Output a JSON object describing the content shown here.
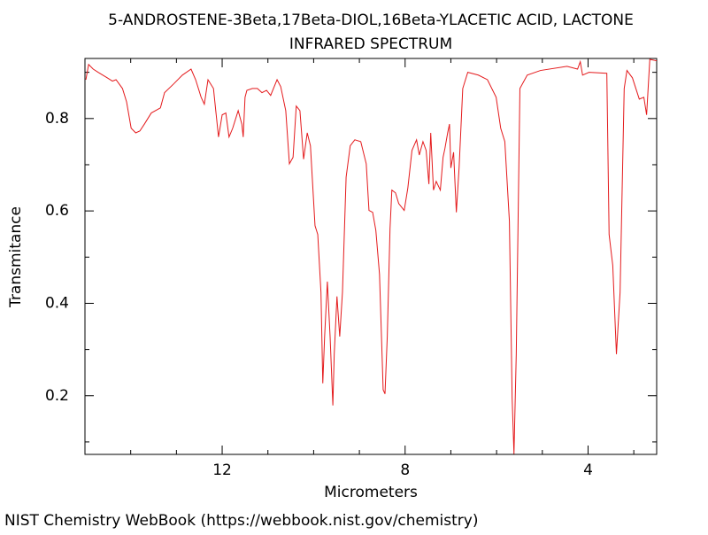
{
  "chart_data": {
    "type": "line",
    "title": "5-ANDROSTENE-3Beta,17Beta-DIOL,16Beta-YLACETIC ACID, LACTONE",
    "subtitle": "INFRARED SPECTRUM",
    "x_label": "Micrometers",
    "y_label": "Transmitance",
    "footer": "NIST Chemistry WebBook (https://webbook.nist.gov/chemistry)",
    "color": "#e41a1c",
    "xlim": [
      15,
      2.5
    ],
    "ylim": [
      0.073,
      0.93
    ],
    "xticks": [
      12,
      8,
      4
    ],
    "xminorticks": [
      14,
      13,
      11,
      10,
      9,
      7,
      6,
      5,
      3
    ],
    "yticks": [
      0.2,
      0.4,
      0.6,
      0.8
    ],
    "yminorticks": [
      0.1,
      0.3,
      0.5,
      0.7,
      0.9
    ],
    "x": [
      14.98,
      14.92,
      14.82,
      14.71,
      14.51,
      14.4,
      14.32,
      14.18,
      14.09,
      13.99,
      13.89,
      13.8,
      13.7,
      13.55,
      13.35,
      13.26,
      13.06,
      12.87,
      12.68,
      12.58,
      12.46,
      12.39,
      12.31,
      12.19,
      12.14,
      12.08,
      12.0,
      11.92,
      11.85,
      11.77,
      11.65,
      11.57,
      11.54,
      11.5,
      11.46,
      11.34,
      11.23,
      11.13,
      11.03,
      10.94,
      10.8,
      10.72,
      10.61,
      10.53,
      10.45,
      10.38,
      10.3,
      10.22,
      10.14,
      10.07,
      9.97,
      9.91,
      9.84,
      9.8,
      9.76,
      9.7,
      9.64,
      9.58,
      9.55,
      9.49,
      9.43,
      9.37,
      9.29,
      9.2,
      9.1,
      8.97,
      8.85,
      8.79,
      8.71,
      8.64,
      8.56,
      8.48,
      8.44,
      8.39,
      8.33,
      8.29,
      8.21,
      8.14,
      8.02,
      7.94,
      7.85,
      7.75,
      7.69,
      7.61,
      7.54,
      7.48,
      7.44,
      7.38,
      7.32,
      7.23,
      7.17,
      7.13,
      7.07,
      7.03,
      7.0,
      6.94,
      6.88,
      6.82,
      6.74,
      6.63,
      6.4,
      6.2,
      6.01,
      5.91,
      5.82,
      5.72,
      5.66,
      5.62,
      5.57,
      5.49,
      5.33,
      5.04,
      4.46,
      4.23,
      4.17,
      4.12,
      3.98,
      3.59,
      3.54,
      3.46,
      3.38,
      3.3,
      3.21,
      3.15,
      3.03,
      2.88,
      2.78,
      2.72,
      2.65,
      2.5
    ],
    "values": [
      0.884,
      0.917,
      0.907,
      0.9,
      0.888,
      0.881,
      0.884,
      0.865,
      0.836,
      0.779,
      0.769,
      0.773,
      0.788,
      0.812,
      0.823,
      0.856,
      0.875,
      0.894,
      0.907,
      0.884,
      0.846,
      0.831,
      0.884,
      0.865,
      0.817,
      0.76,
      0.808,
      0.812,
      0.76,
      0.779,
      0.817,
      0.788,
      0.76,
      0.846,
      0.861,
      0.865,
      0.865,
      0.856,
      0.861,
      0.85,
      0.884,
      0.869,
      0.817,
      0.702,
      0.716,
      0.827,
      0.817,
      0.712,
      0.769,
      0.741,
      0.568,
      0.549,
      0.424,
      0.227,
      0.328,
      0.447,
      0.328,
      0.179,
      0.29,
      0.415,
      0.328,
      0.424,
      0.673,
      0.741,
      0.754,
      0.75,
      0.702,
      0.601,
      0.597,
      0.558,
      0.463,
      0.213,
      0.204,
      0.328,
      0.562,
      0.645,
      0.639,
      0.616,
      0.601,
      0.65,
      0.731,
      0.754,
      0.721,
      0.75,
      0.731,
      0.658,
      0.769,
      0.645,
      0.664,
      0.645,
      0.716,
      0.735,
      0.769,
      0.788,
      0.693,
      0.727,
      0.597,
      0.693,
      0.865,
      0.9,
      0.894,
      0.884,
      0.846,
      0.779,
      0.75,
      0.578,
      0.194,
      0.074,
      0.29,
      0.865,
      0.894,
      0.904,
      0.913,
      0.907,
      0.923,
      0.894,
      0.9,
      0.898,
      0.549,
      0.482,
      0.29,
      0.424,
      0.865,
      0.904,
      0.888,
      0.842,
      0.846,
      0.808,
      0.928,
      0.925
    ]
  }
}
